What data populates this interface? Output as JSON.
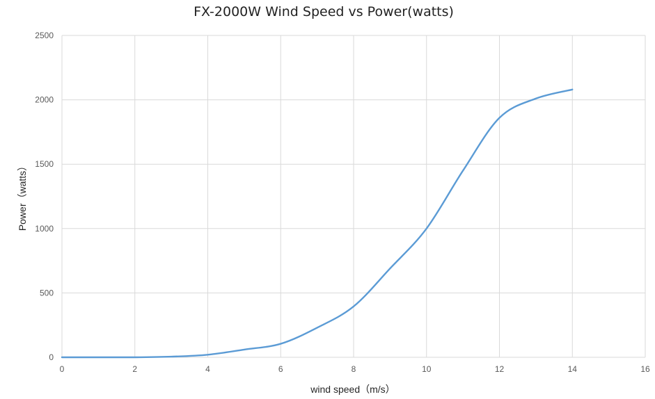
{
  "chart_data": {
    "type": "line",
    "title": "FX-2000W Wind Speed vs Power(watts)",
    "xlabel": "wind speed（m/s）",
    "ylabel": "Power（watts）",
    "xlim": [
      0,
      16
    ],
    "ylim": [
      0,
      2500
    ],
    "x_ticks": [
      0,
      2,
      4,
      6,
      8,
      10,
      12,
      14,
      16
    ],
    "y_ticks": [
      0,
      500,
      1000,
      1500,
      2000,
      2500
    ],
    "grid": true,
    "legend": "none",
    "series": [
      {
        "color": "#5b9bd5",
        "x": [
          0,
          1,
          2,
          3,
          4,
          5,
          6,
          7,
          8,
          9,
          10,
          11,
          12,
          13,
          14
        ],
        "y": [
          0,
          0,
          0,
          5,
          20,
          60,
          105,
          230,
          395,
          690,
          1000,
          1450,
          1860,
          2010,
          2080
        ]
      }
    ]
  }
}
